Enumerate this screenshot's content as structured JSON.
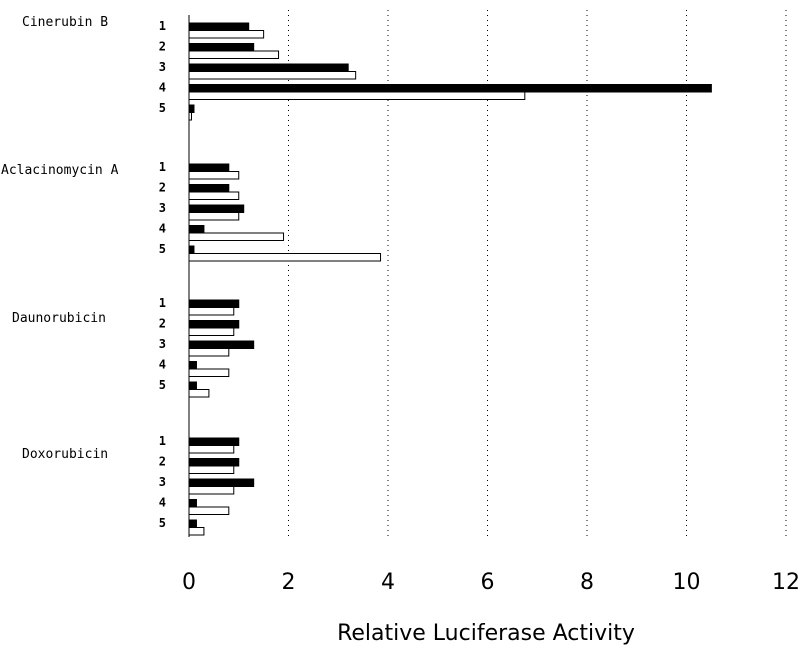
{
  "chart_data": {
    "type": "bar",
    "orientation": "horizontal",
    "xlabel": "Relative Luciferase Activity",
    "xlim": [
      0,
      12
    ],
    "xticks": [
      "0",
      "2",
      "4",
      "6",
      "8",
      "10",
      "12"
    ],
    "groups": [
      {
        "name": "Cinerubin B",
        "rows": [
          {
            "label": "1",
            "filled": 1.2,
            "open": 1.5
          },
          {
            "label": "2",
            "filled": 1.3,
            "open": 1.8
          },
          {
            "label": "3",
            "filled": 3.2,
            "open": 3.35
          },
          {
            "label": "4",
            "filled": 10.5,
            "open": 6.75
          },
          {
            "label": "5",
            "filled": 0.1,
            "open": 0.05
          }
        ]
      },
      {
        "name": "Aclacinomycin A",
        "rows": [
          {
            "label": "1",
            "filled": 0.8,
            "open": 1.0
          },
          {
            "label": "2",
            "filled": 0.8,
            "open": 1.0
          },
          {
            "label": "3",
            "filled": 1.1,
            "open": 1.0
          },
          {
            "label": "4",
            "filled": 0.3,
            "open": 1.9
          },
          {
            "label": "5",
            "filled": 0.1,
            "open": 3.85
          }
        ]
      },
      {
        "name": "Daunorubicin",
        "rows": [
          {
            "label": "1",
            "filled": 1.0,
            "open": 0.9
          },
          {
            "label": "2",
            "filled": 1.0,
            "open": 0.9
          },
          {
            "label": "3",
            "filled": 1.3,
            "open": 0.8
          },
          {
            "label": "4",
            "filled": 0.15,
            "open": 0.8
          },
          {
            "label": "5",
            "filled": 0.15,
            "open": 0.4
          }
        ]
      },
      {
        "name": "Doxorubicin",
        "rows": [
          {
            "label": "1",
            "filled": 1.0,
            "open": 0.9
          },
          {
            "label": "2",
            "filled": 1.0,
            "open": 0.9
          },
          {
            "label": "3",
            "filled": 1.3,
            "open": 0.9
          },
          {
            "label": "4",
            "filled": 0.15,
            "open": 0.8
          },
          {
            "label": "5",
            "filled": 0.15,
            "open": 0.3
          }
        ]
      }
    ],
    "grid": true,
    "legend": "none"
  }
}
